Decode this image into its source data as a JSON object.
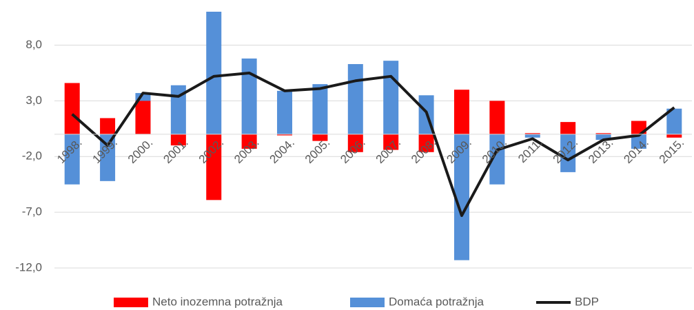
{
  "chart_data": {
    "type": "bar_line",
    "categories": [
      "1998.",
      "1999.",
      "2000.",
      "2001.",
      "2002.",
      "2003.",
      "2004.",
      "2005.",
      "2006.",
      "2007.",
      "2008.",
      "2009.",
      "2010.",
      "2011.",
      "2012.",
      "2013.",
      "2014.",
      "2015."
    ],
    "series": [
      {
        "name": "Domaća potražnja",
        "color": "#5590d8",
        "kind": "bar",
        "values": [
          -4.5,
          -4.2,
          3.7,
          4.4,
          11.0,
          6.8,
          3.9,
          4.5,
          6.3,
          6.6,
          3.5,
          -11.3,
          -4.5,
          -0.3,
          -3.4,
          -0.5,
          -1.3,
          2.3
        ]
      },
      {
        "name": "Neto inozemna potražnja",
        "color": "#ff0000",
        "kind": "bar",
        "values": [
          4.6,
          1.45,
          3.0,
          -1.0,
          -5.9,
          -1.3,
          -0.1,
          -0.6,
          -1.6,
          -1.4,
          -1.6,
          4.0,
          3.0,
          0.1,
          1.1,
          0.1,
          1.2,
          -0.3
        ]
      },
      {
        "name": "BDP",
        "color": "#1a1a1a",
        "kind": "line",
        "values": [
          1.8,
          -1.0,
          3.7,
          3.4,
          5.2,
          5.5,
          3.9,
          4.1,
          4.8,
          5.2,
          2.0,
          -7.3,
          -1.4,
          -0.4,
          -2.3,
          -0.5,
          -0.1,
          2.4
        ]
      }
    ],
    "legend_order": [
      "Neto inozemna potražnja",
      "Domaća potražnja",
      "BDP"
    ],
    "ylim": [
      -12,
      11
    ],
    "yticks": [
      {
        "value": -12,
        "label": "-12,0"
      },
      {
        "value": -7,
        "label": "-7,0"
      },
      {
        "value": -2,
        "label": "-2,0"
      },
      {
        "value": 3,
        "label": "3,0"
      },
      {
        "value": 8,
        "label": "8,0"
      }
    ],
    "grid": true,
    "legend": "bottom"
  }
}
